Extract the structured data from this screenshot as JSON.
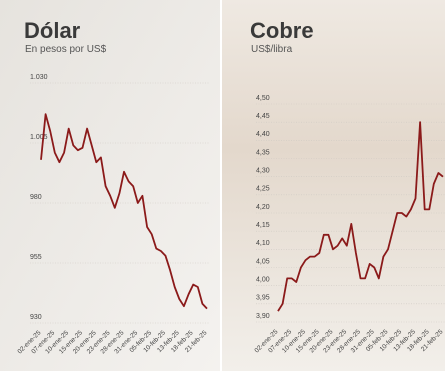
{
  "chart_data": [
    {
      "type": "line",
      "title": "Dólar",
      "subtitle": "En pesos por US$",
      "x": [
        "02-ene-25",
        null,
        null,
        "07-ene-25",
        null,
        null,
        "10-ene-25",
        null,
        null,
        "15-ene-25",
        null,
        null,
        "20-ene-25",
        null,
        null,
        "23-ene-25",
        null,
        null,
        "28-ene-25",
        null,
        null,
        "31-ene-25",
        null,
        null,
        "05-feb-25",
        null,
        null,
        "10-feb-25",
        null,
        null,
        "13-feb-25",
        null,
        null,
        "18-feb-25",
        null,
        null,
        "21-feb-25"
      ],
      "series": [
        {
          "name": "Dólar",
          "color": "#8b1a1a",
          "values": [
            998,
            1017,
            1010,
            1001,
            997,
            1001,
            1011,
            1004,
            1002,
            1003,
            1011,
            1004,
            997,
            999,
            987,
            983,
            978,
            984,
            993,
            989,
            987,
            980,
            983,
            970,
            967,
            961,
            960,
            958,
            952,
            945,
            940,
            937,
            942,
            946,
            945,
            938,
            936
          ]
        }
      ],
      "ylim": [
        930,
        1030
      ],
      "yticks": [
        {
          "value": 1030,
          "label": "1.030"
        },
        {
          "value": 1005,
          "label": "1.005"
        },
        980,
        955,
        930
      ],
      "grid": true
    },
    {
      "type": "line",
      "title": "Cobre",
      "subtitle": "US$/libra",
      "x": [
        "02-ene-25",
        null,
        null,
        "07-ene-25",
        null,
        null,
        "10-ene-25",
        null,
        null,
        "15-ene-25",
        null,
        null,
        "20-ene-25",
        null,
        null,
        "23-ene-25",
        null,
        null,
        "28-ene-25",
        null,
        null,
        "31-ene-25",
        null,
        null,
        "05-feb-25",
        null,
        null,
        "10-feb-25",
        null,
        null,
        "13-feb-25",
        null,
        null,
        "18-feb-25",
        null,
        null,
        "21-feb-25"
      ],
      "series": [
        {
          "name": "Cobre",
          "color": "#8b1a1a",
          "values": [
            3.93,
            3.95,
            4.02,
            4.02,
            4.01,
            4.05,
            4.07,
            4.08,
            4.08,
            4.09,
            4.14,
            4.14,
            4.1,
            4.11,
            4.13,
            4.11,
            4.17,
            4.09,
            4.02,
            4.02,
            4.06,
            4.05,
            4.02,
            4.08,
            4.1,
            4.15,
            4.2,
            4.2,
            4.19,
            4.21,
            4.24,
            4.45,
            4.21,
            4.21,
            4.28,
            4.31,
            4.3
          ]
        }
      ],
      "ylim": [
        3.9,
        4.5
      ],
      "yticks": [
        {
          "value": 4.5,
          "label": "4,50"
        },
        {
          "value": 4.45,
          "label": "4,45"
        },
        {
          "value": 4.4,
          "label": "4,40"
        },
        {
          "value": 4.35,
          "label": "4,35"
        },
        {
          "value": 4.3,
          "label": "4,30"
        },
        {
          "value": 4.25,
          "label": "4,25"
        },
        {
          "value": 4.2,
          "label": "4,20"
        },
        {
          "value": 4.15,
          "label": "4,15"
        },
        {
          "value": 4.1,
          "label": "4,10"
        },
        {
          "value": 4.05,
          "label": "4,05"
        },
        {
          "value": 4.0,
          "label": "4,00"
        },
        {
          "value": 3.95,
          "label": "3,95"
        },
        {
          "value": 3.9,
          "label": "3,90"
        }
      ],
      "grid": true
    }
  ]
}
